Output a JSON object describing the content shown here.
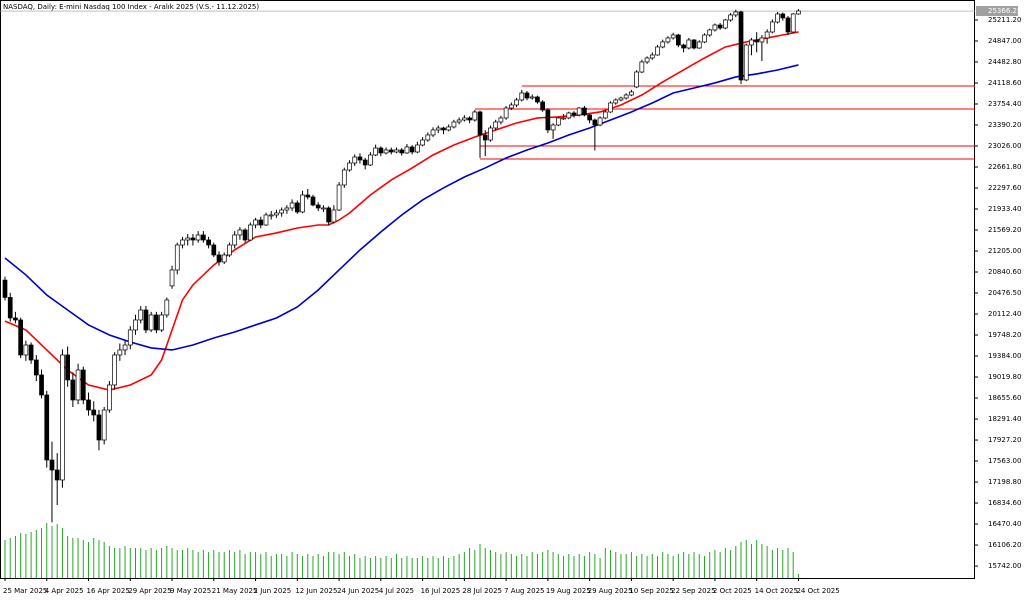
{
  "chart_data": {
    "type": "candlestick",
    "title": "NASDAQ, Daily: E-mini Nasdaq 100 Index - Aralık 2025 (V.S.- 11.12.2025)",
    "ylim": [
      15535,
      25488
    ],
    "yticks": [
      {
        "value": 25211.2,
        "label": "25211.20"
      },
      {
        "value": 24847,
        "label": "24847.00"
      },
      {
        "value": 24482.8,
        "label": "24482.80"
      },
      {
        "value": 24118.6,
        "label": "24118.60"
      },
      {
        "value": 23754.4,
        "label": "23754.40"
      },
      {
        "value": 23390.2,
        "label": "23390.20"
      },
      {
        "value": 23026,
        "label": "23026.00"
      },
      {
        "value": 22661.8,
        "label": "22661.80"
      },
      {
        "value": 22297.6,
        "label": "22297.60"
      },
      {
        "value": 21933.4,
        "label": "21933.40"
      },
      {
        "value": 21569.2,
        "label": "21569.20"
      },
      {
        "value": 21205,
        "label": "21205.00"
      },
      {
        "value": 20840.6,
        "label": "20840.60"
      },
      {
        "value": 20476.5,
        "label": "20476.50"
      },
      {
        "value": 20112.4,
        "label": "20112.40"
      },
      {
        "value": 19748.2,
        "label": "19748.20"
      },
      {
        "value": 19384,
        "label": "19384.00"
      },
      {
        "value": 19019.8,
        "label": "19019.80"
      },
      {
        "value": 18655.6,
        "label": "18655.60"
      },
      {
        "value": 18291.4,
        "label": "18291.40"
      },
      {
        "value": 17927.2,
        "label": "17927.20"
      },
      {
        "value": 17563,
        "label": "17563.00"
      },
      {
        "value": 17198.8,
        "label": "17198.80"
      },
      {
        "value": 16834.6,
        "label": "16834.60"
      },
      {
        "value": 16470.4,
        "label": "16470.40"
      },
      {
        "value": 16106.2,
        "label": "16106.20"
      },
      {
        "value": 15742,
        "label": "15742.00"
      }
    ],
    "xlim": [
      -1,
      154
    ],
    "xticks": [
      {
        "value": 0,
        "label": "25 Mar 2025"
      },
      {
        "value": 8,
        "label": "4 Apr 2025"
      },
      {
        "value": 16,
        "label": "16 Apr 2025"
      },
      {
        "value": 24,
        "label": "29 Apr 2025"
      },
      {
        "value": 32,
        "label": "9 May 2025"
      },
      {
        "value": 40,
        "label": "21 May 2025"
      },
      {
        "value": 48,
        "label": "2 Jun 2025"
      },
      {
        "value": 56,
        "label": "12 Jun 2025"
      },
      {
        "value": 64,
        "label": "24 Jun 2025"
      },
      {
        "value": 72,
        "label": "4 Jul 2025"
      },
      {
        "value": 80,
        "label": "16 Jul 2025"
      },
      {
        "value": 88,
        "label": "28 Jul 2025"
      },
      {
        "value": 96,
        "label": "7 Aug 2025"
      },
      {
        "value": 104,
        "label": "19 Aug 2025"
      },
      {
        "value": 112,
        "label": "29 Aug 2025"
      },
      {
        "value": 120,
        "label": "10 Sep 2025"
      },
      {
        "value": 128,
        "label": "22 Sep 2025"
      },
      {
        "value": 136,
        "label": "2 Oct 2025"
      },
      {
        "value": 144,
        "label": "14 Oct 2025"
      },
      {
        "value": 152,
        "label": "24 Oct 2025"
      }
    ],
    "last_price": {
      "value": 25366.25,
      "label": "25366.25"
    },
    "candles": [
      [
        20700,
        20760,
        20350,
        20400
      ],
      [
        20400,
        20480,
        19980,
        20044
      ],
      [
        20044,
        20150,
        19950,
        20009
      ],
      [
        20009,
        20050,
        19350,
        19402
      ],
      [
        19402,
        19650,
        19300,
        19575
      ],
      [
        19575,
        19620,
        19250,
        19315
      ],
      [
        19315,
        19400,
        18950,
        19055
      ],
      [
        19055,
        19150,
        18650,
        18708
      ],
      [
        18708,
        18780,
        17450,
        17581
      ],
      [
        17581,
        17900,
        16500,
        17408
      ],
      [
        17408,
        17700,
        16800,
        17235
      ],
      [
        17235,
        19500,
        17100,
        19402
      ],
      [
        19402,
        19550,
        18850,
        18969
      ],
      [
        18969,
        19100,
        18500,
        18622
      ],
      [
        18622,
        19250,
        18550,
        19142
      ],
      [
        19142,
        19200,
        18550,
        18622
      ],
      [
        18622,
        18750,
        18350,
        18448
      ],
      [
        18448,
        18600,
        18250,
        18362
      ],
      [
        18362,
        18450,
        17750,
        17928
      ],
      [
        17928,
        18500,
        17850,
        18448
      ],
      [
        18448,
        18950,
        18400,
        18882
      ],
      [
        18882,
        19450,
        18800,
        19402
      ],
      [
        19402,
        19600,
        19300,
        19489
      ],
      [
        19489,
        19650,
        19400,
        19575
      ],
      [
        19575,
        19900,
        19500,
        19836
      ],
      [
        19836,
        20100,
        19750,
        20009
      ],
      [
        20009,
        20250,
        19950,
        20182
      ],
      [
        20182,
        20250,
        19780,
        19836
      ],
      [
        19836,
        20150,
        19800,
        20096
      ],
      [
        20096,
        20150,
        19780,
        19836
      ],
      [
        19836,
        20150,
        19800,
        20096
      ],
      [
        20096,
        20400,
        20050,
        20356
      ],
      [
        20600,
        20950,
        20550,
        20876
      ],
      [
        20876,
        21350,
        20800,
        21309
      ],
      [
        21309,
        21450,
        21250,
        21396
      ],
      [
        21396,
        21500,
        21300,
        21431
      ],
      [
        21431,
        21500,
        21300,
        21396
      ],
      [
        21396,
        21550,
        21350,
        21483
      ],
      [
        21483,
        21550,
        21350,
        21396
      ],
      [
        21396,
        21450,
        21250,
        21309
      ],
      [
        21309,
        21350,
        21100,
        21136
      ],
      [
        21136,
        21200,
        20950,
        21015
      ],
      [
        21015,
        21180,
        20980,
        21136
      ],
      [
        21136,
        21350,
        21100,
        21309
      ],
      [
        21309,
        21550,
        21250,
        21483
      ],
      [
        21483,
        21620,
        21400,
        21570
      ],
      [
        21570,
        21600,
        21350,
        21396
      ],
      [
        21396,
        21700,
        21380,
        21656
      ],
      [
        21656,
        21780,
        21600,
        21743
      ],
      [
        21743,
        21800,
        21600,
        21656
      ],
      [
        21656,
        21870,
        21640,
        21830
      ],
      [
        21830,
        21900,
        21750,
        21830
      ],
      [
        21830,
        21920,
        21780,
        21864
      ],
      [
        21864,
        21960,
        21800,
        21916
      ],
      [
        21916,
        22000,
        21850,
        21951
      ],
      [
        21951,
        22100,
        21900,
        22038
      ],
      [
        22038,
        22080,
        21850,
        21882
      ],
      [
        21882,
        22250,
        21860,
        22176
      ],
      [
        22176,
        22280,
        22100,
        22142
      ],
      [
        22142,
        22180,
        21980,
        22003
      ],
      [
        22003,
        22050,
        21900,
        21951
      ],
      [
        21951,
        22000,
        21880,
        21951
      ],
      [
        21951,
        21980,
        21650,
        21708
      ],
      [
        21708,
        22000,
        21680,
        21916
      ],
      [
        21916,
        22400,
        21900,
        22350
      ],
      [
        22350,
        22650,
        22300,
        22610
      ],
      [
        22610,
        22780,
        22580,
        22731
      ],
      [
        22731,
        22880,
        22680,
        22835
      ],
      [
        22835,
        22900,
        22720,
        22783
      ],
      [
        22783,
        22820,
        22620,
        22697
      ],
      [
        22697,
        22920,
        22680,
        22870
      ],
      [
        22870,
        23050,
        22850,
        22991
      ],
      [
        22991,
        23020,
        22850,
        22905
      ],
      [
        22905,
        23000,
        22880,
        22957
      ],
      [
        22957,
        23000,
        22880,
        22922
      ],
      [
        22922,
        23000,
        22900,
        22957
      ],
      [
        22957,
        22990,
        22860,
        22905
      ],
      [
        22905,
        23060,
        22890,
        23009
      ],
      [
        23009,
        23040,
        22880,
        22922
      ],
      [
        22922,
        23100,
        22900,
        23043
      ],
      [
        23043,
        23180,
        23020,
        23130
      ],
      [
        23130,
        23260,
        23100,
        23217
      ],
      [
        23217,
        23350,
        23180,
        23304
      ],
      [
        23304,
        23380,
        23250,
        23338
      ],
      [
        23338,
        23360,
        23230,
        23304
      ],
      [
        23304,
        23400,
        23280,
        23356
      ],
      [
        23356,
        23480,
        23330,
        23442
      ],
      [
        23442,
        23520,
        23400,
        23477
      ],
      [
        23477,
        23560,
        23450,
        23512
      ],
      [
        23512,
        23540,
        23420,
        23477
      ],
      [
        23477,
        23650,
        23450,
        23616
      ],
      [
        23616,
        23640,
        22820,
        23217
      ],
      [
        23217,
        23300,
        22850,
        23130
      ],
      [
        23130,
        23380,
        23100,
        23338
      ],
      [
        23338,
        23480,
        23300,
        23442
      ],
      [
        23442,
        23550,
        23400,
        23512
      ],
      [
        23512,
        23720,
        23480,
        23685
      ],
      [
        23685,
        23780,
        23650,
        23737
      ],
      [
        23737,
        23860,
        23700,
        23824
      ],
      [
        23824,
        24000,
        23800,
        23945
      ],
      [
        23945,
        23980,
        23820,
        23858
      ],
      [
        23858,
        23920,
        23830,
        23876
      ],
      [
        23876,
        23900,
        23760,
        23789
      ],
      [
        23789,
        23820,
        23620,
        23650
      ],
      [
        23650,
        23680,
        23250,
        23304
      ],
      [
        23304,
        23420,
        23150,
        23390
      ],
      [
        23390,
        23530,
        23370,
        23512
      ],
      [
        23512,
        23580,
        23480,
        23512
      ],
      [
        23512,
        23620,
        23490,
        23598
      ],
      [
        23598,
        23630,
        23520,
        23564
      ],
      [
        23564,
        23700,
        23540,
        23685
      ],
      [
        23685,
        23720,
        23540,
        23564
      ],
      [
        23564,
        23580,
        23420,
        23477
      ],
      [
        23477,
        23500,
        22950,
        23390
      ],
      [
        23390,
        23540,
        23370,
        23512
      ],
      [
        23512,
        23640,
        23490,
        23616
      ],
      [
        23616,
        23800,
        23600,
        23772
      ],
      [
        23772,
        23850,
        23740,
        23824
      ],
      [
        23824,
        23880,
        23800,
        23858
      ],
      [
        23858,
        23940,
        23830,
        23910
      ],
      [
        23910,
        24000,
        23890,
        23963
      ],
      [
        24050,
        24340,
        24030,
        24309
      ],
      [
        24309,
        24520,
        24290,
        24483
      ],
      [
        24483,
        24580,
        24450,
        24552
      ],
      [
        24552,
        24650,
        24520,
        24604
      ],
      [
        24604,
        24780,
        24590,
        24743
      ],
      [
        24743,
        24870,
        24720,
        24830
      ],
      [
        24830,
        24930,
        24800,
        24899
      ],
      [
        24899,
        24990,
        24870,
        24951
      ],
      [
        24951,
        24970,
        24740,
        24777
      ],
      [
        24777,
        24800,
        24650,
        24725
      ],
      [
        24725,
        24900,
        24700,
        24864
      ],
      [
        24864,
        24880,
        24700,
        24725
      ],
      [
        24725,
        24860,
        24710,
        24830
      ],
      [
        24830,
        24980,
        24810,
        24951
      ],
      [
        24951,
        25060,
        24920,
        25038
      ],
      [
        25038,
        25150,
        25010,
        25124
      ],
      [
        25124,
        25160,
        25040,
        25072
      ],
      [
        25072,
        25230,
        25050,
        25211
      ],
      [
        25211,
        25330,
        25180,
        25298
      ],
      [
        25298,
        25390,
        25260,
        25350
      ],
      [
        25350,
        25370,
        24100,
        24171
      ],
      [
        24171,
        24800,
        24150,
        24777
      ],
      [
        24777,
        24900,
        24600,
        24864
      ],
      [
        24864,
        25000,
        24650,
        24830
      ],
      [
        24830,
        24950,
        24500,
        24899
      ],
      [
        24899,
        25050,
        24800,
        25003
      ],
      [
        25003,
        25220,
        24980,
        25176
      ],
      [
        25176,
        25350,
        25150,
        25315
      ],
      [
        25315,
        25340,
        25200,
        25246
      ],
      [
        25246,
        25280,
        24950,
        25003
      ],
      [
        25003,
        25330,
        24990,
        25315
      ],
      [
        25315,
        25400,
        25300,
        25367
      ]
    ],
    "volume": [
      38,
      40,
      42,
      45,
      44,
      46,
      48,
      50,
      55,
      52,
      54,
      50,
      42,
      40,
      40,
      38,
      36,
      40,
      38,
      36,
      32,
      30,
      30,
      32,
      30,
      30,
      30,
      28,
      30,
      28,
      30,
      32,
      30,
      28,
      28,
      30,
      28,
      26,
      28,
      26,
      28,
      26,
      26,
      28,
      26,
      28,
      24,
      26,
      26,
      24,
      26,
      22,
      24,
      24,
      22,
      26,
      24,
      22,
      24,
      22,
      24,
      22,
      26,
      26,
      24,
      26,
      22,
      24,
      20,
      22,
      20,
      22,
      20,
      22,
      20,
      24,
      20,
      22,
      20,
      20,
      22,
      20,
      22,
      20,
      22,
      20,
      22,
      24,
      26,
      30,
      28,
      34,
      30,
      28,
      26,
      24,
      26,
      24,
      22,
      24,
      22,
      26,
      24,
      26,
      28,
      26,
      24,
      22,
      24,
      22,
      24,
      22,
      26,
      24,
      20,
      30,
      28,
      26,
      24,
      24,
      26,
      22,
      24,
      22,
      24,
      22,
      26,
      24,
      22,
      24,
      26,
      24,
      26,
      24,
      22,
      26,
      28,
      26,
      30,
      28,
      32,
      36,
      38,
      34,
      38,
      34,
      32,
      28,
      30,
      28,
      30,
      26,
      4
    ],
    "volume_color": "#26a626",
    "lines": [
      {
        "color": "#ff0000",
        "x": [
          0,
          4,
          8,
          12,
          16,
          20,
          24,
          28,
          30,
          32,
          34,
          36,
          40,
          44,
          48,
          52,
          56,
          60,
          62,
          64,
          66,
          70,
          74,
          78,
          82,
          86,
          90,
          94,
          98,
          102,
          106,
          110,
          114,
          118,
          122,
          126,
          130,
          134,
          138,
          142,
          146,
          150,
          152
        ],
        "values": [
          19989,
          19836,
          19489,
          19142,
          18882,
          18795,
          18882,
          19055,
          19315,
          19836,
          20356,
          20616,
          20963,
          21223,
          21448,
          21518,
          21604,
          21656,
          21656,
          21743,
          21864,
          22176,
          22437,
          22645,
          22870,
          23043,
          23182,
          23304,
          23425,
          23512,
          23529,
          23564,
          23616,
          23737,
          23910,
          24136,
          24344,
          24552,
          24743,
          24830,
          24899,
          24968,
          25003
        ]
      },
      {
        "color": "#0000cc",
        "x": [
          0,
          4,
          8,
          12,
          16,
          20,
          24,
          28,
          32,
          36,
          40,
          44,
          48,
          52,
          56,
          60,
          64,
          68,
          72,
          76,
          80,
          84,
          88,
          92,
          96,
          100,
          104,
          108,
          112,
          116,
          120,
          124,
          128,
          132,
          136,
          140,
          144,
          148,
          152
        ],
        "values": [
          21084,
          20790,
          20442,
          20182,
          19923,
          19749,
          19627,
          19524,
          19489,
          19575,
          19697,
          19801,
          19923,
          20044,
          20234,
          20529,
          20876,
          21223,
          21535,
          21830,
          22090,
          22298,
          22488,
          22645,
          22818,
          22957,
          23078,
          23217,
          23338,
          23477,
          23616,
          23772,
          23945,
          24032,
          24119,
          24223,
          24275,
          24344,
          24431
        ]
      }
    ],
    "levels": [
      {
        "value": 24067,
        "from": 99
      },
      {
        "value": 23668,
        "from": 90
      },
      {
        "value": 23026,
        "from": 91
      },
      {
        "value": 22801,
        "from": 91
      }
    ],
    "level_color": "#ff0000"
  }
}
